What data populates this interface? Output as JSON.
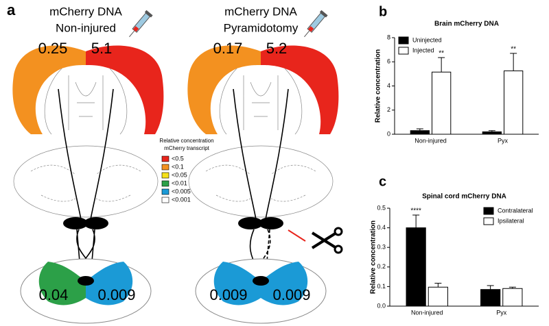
{
  "panel_labels": [
    "a",
    "b",
    "c"
  ],
  "diagram": {
    "brains": [
      {
        "title": [
          "mCherry DNA",
          "Non-injured"
        ],
        "cortex_left": "0.25",
        "cortex_right": "5.1",
        "cord_left": "0.04",
        "cord_right": "0.009"
      },
      {
        "title": [
          "mCherry DNA",
          "Pyramidotomy"
        ],
        "cortex_left": "0.17",
        "cortex_right": "5.2",
        "cord_left": "0.009",
        "cord_right": "0.009"
      }
    ],
    "legend": {
      "title": [
        "Relative concentration",
        "mCherry transcript"
      ],
      "items": [
        {
          "label": "<0.5",
          "color": "#e8251c"
        },
        {
          "label": "<0.1",
          "color": "#f39120"
        },
        {
          "label": "<0.05",
          "color": "#f5e11b"
        },
        {
          "label": "<0.01",
          "color": "#2ca048"
        },
        {
          "label": "<0.005",
          "color": "#1b9ad6"
        },
        {
          "label": "<0.001",
          "color": "#ffffff"
        }
      ]
    }
  },
  "chart_data": [
    {
      "type": "bar",
      "title": "Brain mCherry DNA",
      "y_label": "Relative concentration",
      "categories": [
        "Non-injured",
        "Pyx"
      ],
      "series": [
        {
          "name": "Uninjected",
          "color": "#000000",
          "values": [
            0.3,
            0.2
          ],
          "errors": [
            0.15,
            0.1
          ],
          "labels": [
            null,
            null
          ]
        },
        {
          "name": "Injected",
          "color": "#ffffff",
          "values": [
            5.15,
            5.25
          ],
          "errors": [
            1.2,
            1.45
          ],
          "labels": [
            "**",
            "**"
          ]
        }
      ],
      "ylim": [
        0,
        8
      ],
      "yticks": [
        0,
        2,
        4,
        6,
        8
      ],
      "legend": "upper left"
    },
    {
      "type": "bar",
      "title": "Spinal cord mCherry DNA",
      "y_label": "Relative concentration",
      "categories": [
        "Non-injured",
        "Pyx"
      ],
      "series": [
        {
          "name": "Contralateral",
          "color": "#000000",
          "values": [
            0.4,
            0.085
          ],
          "errors": [
            0.065,
            0.02
          ],
          "labels": [
            "****",
            null
          ]
        },
        {
          "name": "Ipsilateral",
          "color": "#ffffff",
          "values": [
            0.097,
            0.09
          ],
          "errors": [
            0.02,
            0.007
          ],
          "labels": [
            null,
            null
          ]
        }
      ],
      "ylim": [
        0,
        0.5
      ],
      "yticks": [
        {
          "value": 0,
          "label": "0.0"
        },
        0.1,
        0.2,
        0.3,
        0.4,
        0.5
      ],
      "legend": "upper right"
    }
  ]
}
